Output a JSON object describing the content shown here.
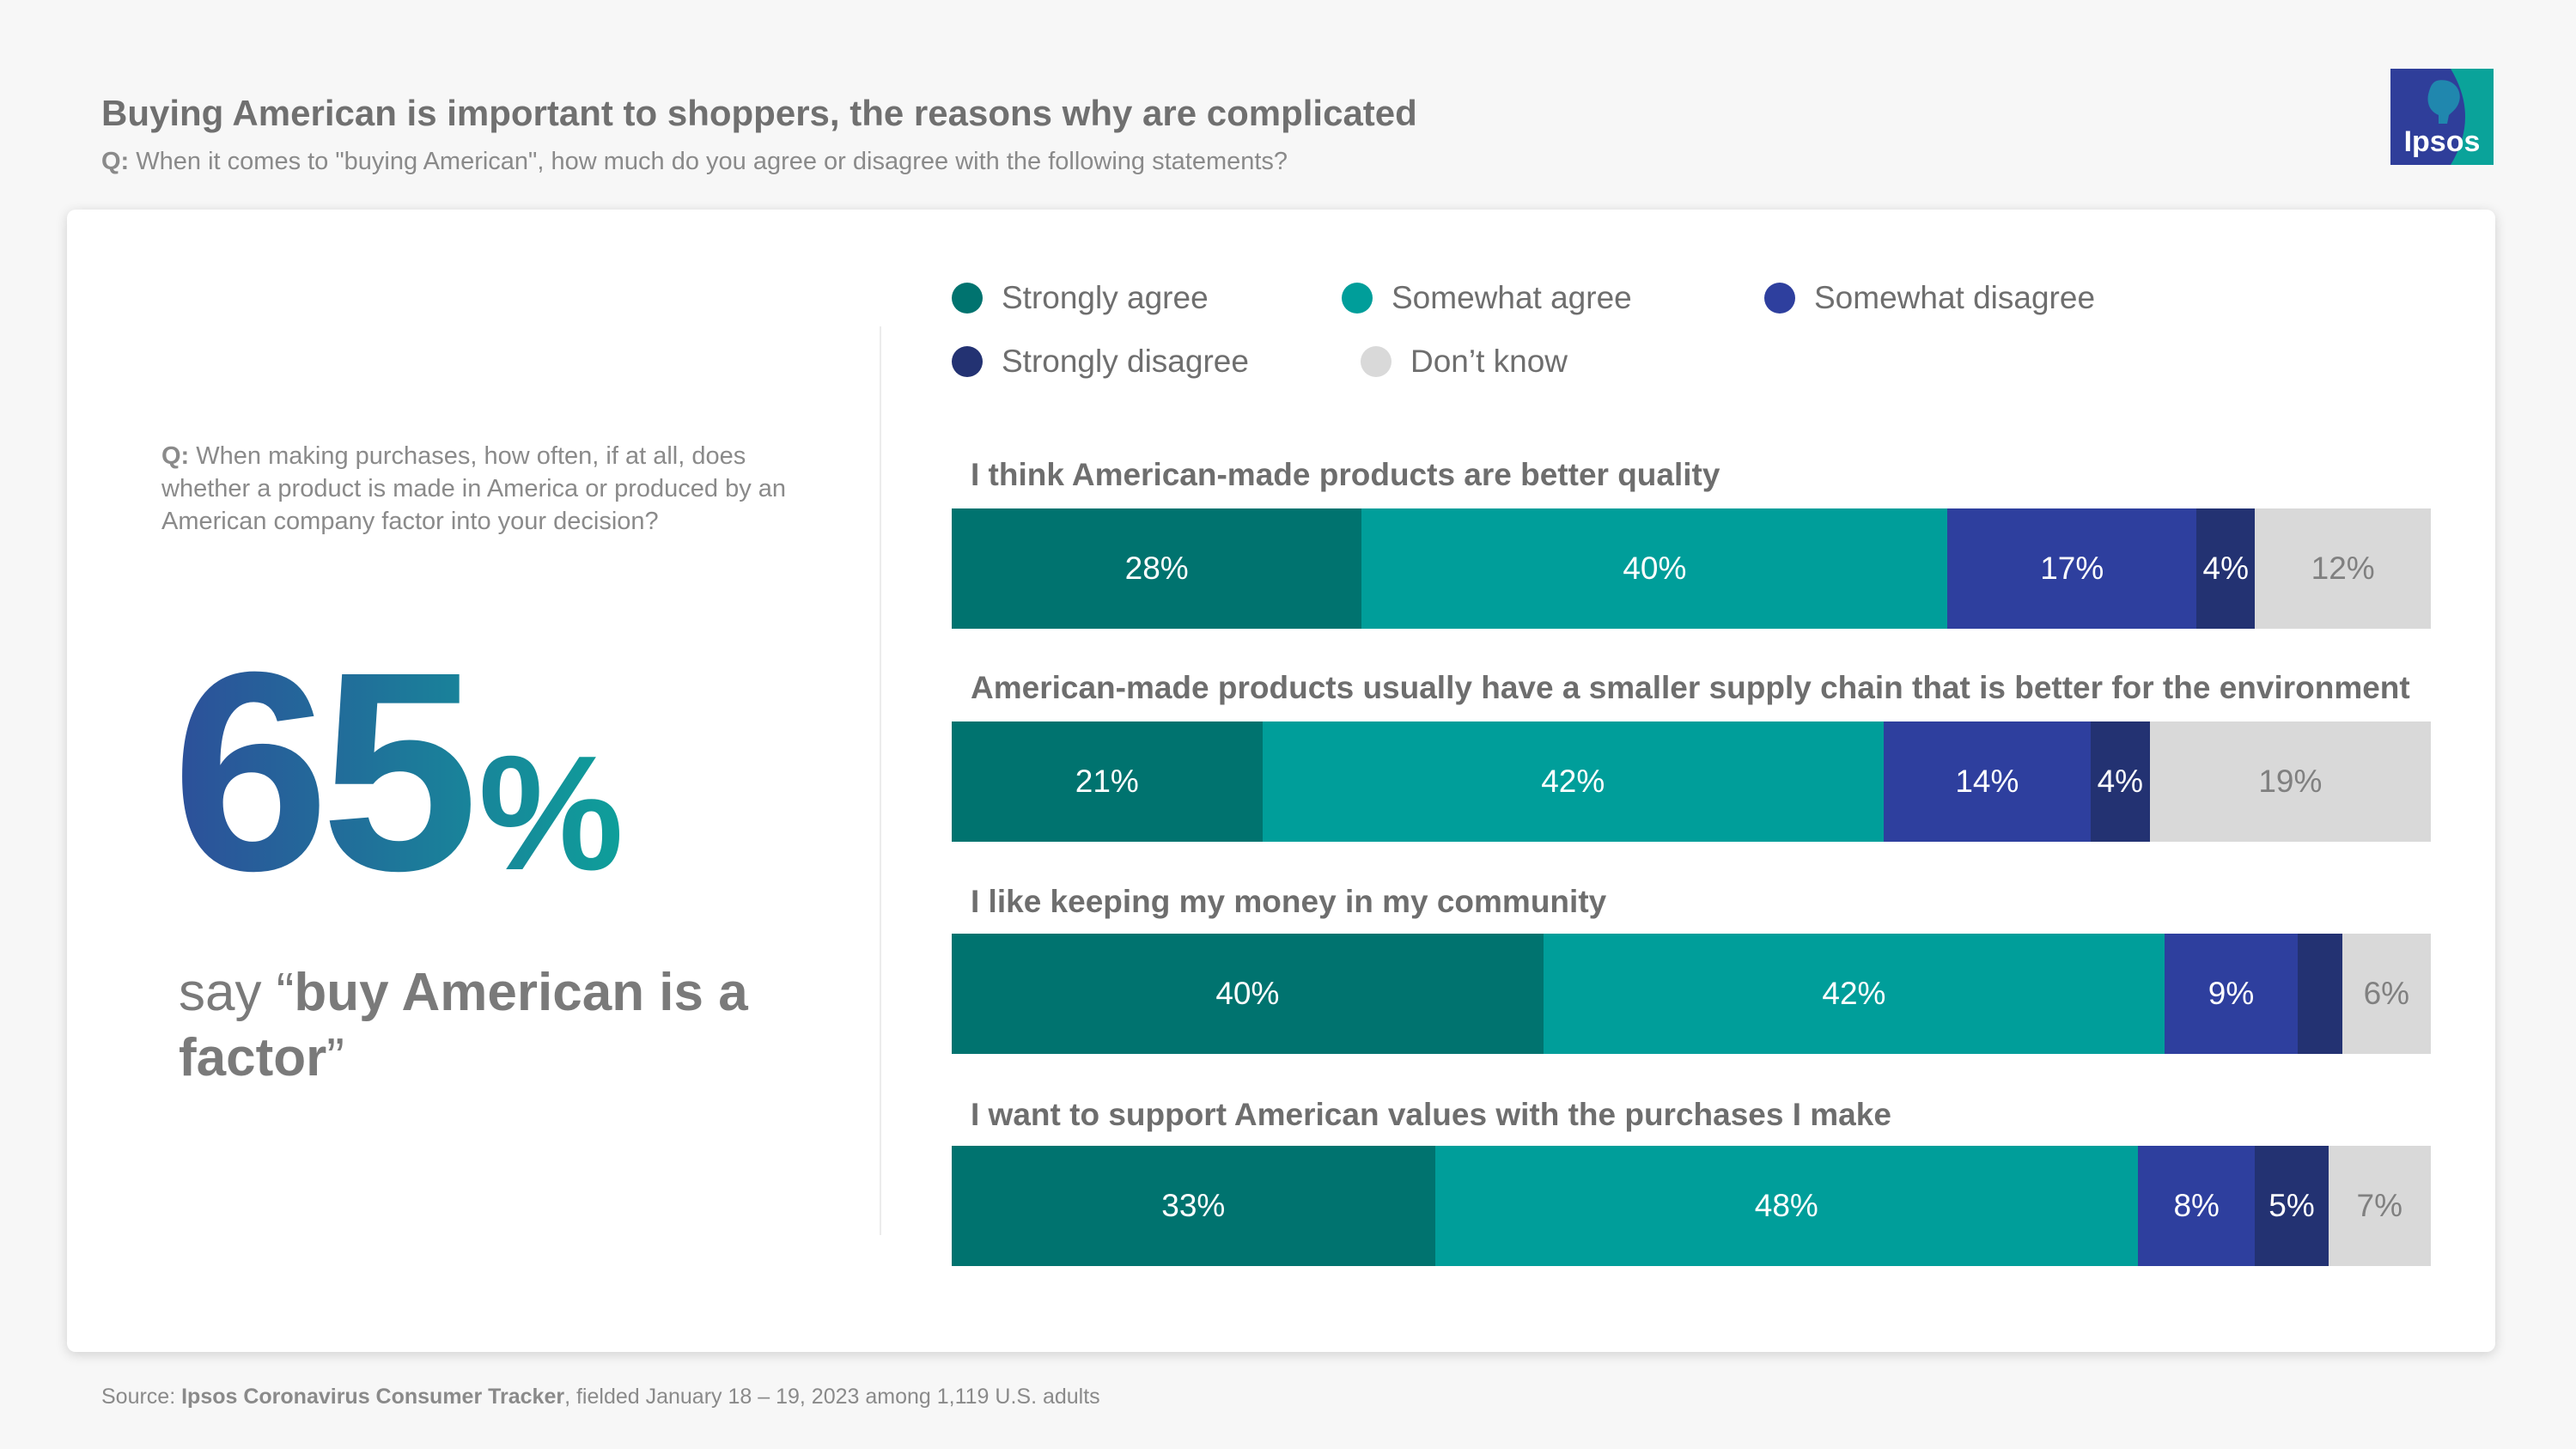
{
  "header": {
    "title": "Buying American is important to shoppers, the reasons why are complicated",
    "question_label": "Q:",
    "question": "When it comes to \"buying American\", how much do you agree or disagree with the following statements?"
  },
  "logo": {
    "text": "Ipsos",
    "bg_color": "#2f3e9a",
    "accent_color": "#0aa39a"
  },
  "left_panel": {
    "question_label": "Q:",
    "question": "When making purchases, how often, if at all, does whether a product is made in America or produced by an American company factor into your decision?",
    "stat_number": "65",
    "stat_unit": "%",
    "say_prefix": "say “",
    "say_bold": "buy American is a factor",
    "say_suffix": "”"
  },
  "colors": {
    "strongly_agree": "#00736f",
    "somewhat_agree": "#009e9a",
    "somewhat_disagree": "#2e3f9e",
    "strongly_disagree": "#233272",
    "dont_know": "#d9d9d9"
  },
  "chart_data": {
    "type": "bar",
    "orientation": "horizontal-stacked-100",
    "legend": [
      "Strongly agree",
      "Somewhat agree",
      "Somewhat disagree",
      "Strongly disagree",
      "Don’t know"
    ],
    "categories": [
      "I think American-made products are better quality",
      "American-made products usually have a smaller supply chain that is better for the environment",
      "I like keeping my money in my community",
      "I want to support American values with the purchases I make"
    ],
    "series": [
      {
        "name": "Strongly agree",
        "values": [
          28,
          21,
          40,
          33
        ],
        "labels": [
          "28%",
          "21%",
          "40%",
          "33%"
        ]
      },
      {
        "name": "Somewhat agree",
        "values": [
          40,
          42,
          42,
          48
        ],
        "labels": [
          "40%",
          "42%",
          "42%",
          "48%"
        ]
      },
      {
        "name": "Somewhat disagree",
        "values": [
          17,
          14,
          9,
          8
        ],
        "labels": [
          "17%",
          "14%",
          "9%",
          "8%"
        ]
      },
      {
        "name": "Strongly disagree",
        "values": [
          4,
          4,
          3,
          5
        ],
        "labels": [
          "4%",
          "4%",
          "",
          "5%"
        ]
      },
      {
        "name": "Don’t know",
        "values": [
          12,
          19,
          6,
          7
        ],
        "labels": [
          "12%",
          "19%",
          "6%",
          "7%"
        ]
      }
    ]
  },
  "source": {
    "prefix": "Source: ",
    "name": "Ipsos Coronavirus Consumer Tracker",
    "suffix": ", fielded January 18 – 19, 2023 among 1,119 U.S. adults"
  }
}
